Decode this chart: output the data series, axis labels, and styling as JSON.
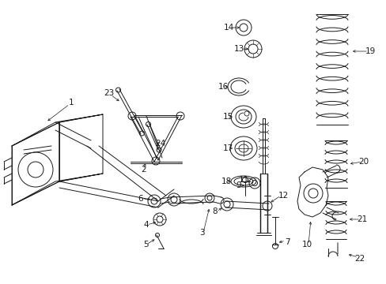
{
  "background_color": "#ffffff",
  "line_color": "#1a1a1a",
  "fig_width": 4.89,
  "fig_height": 3.6,
  "dpi": 100,
  "label_fontsize": 7.5,
  "arrow_lw": 0.5,
  "part_lw": 0.7
}
